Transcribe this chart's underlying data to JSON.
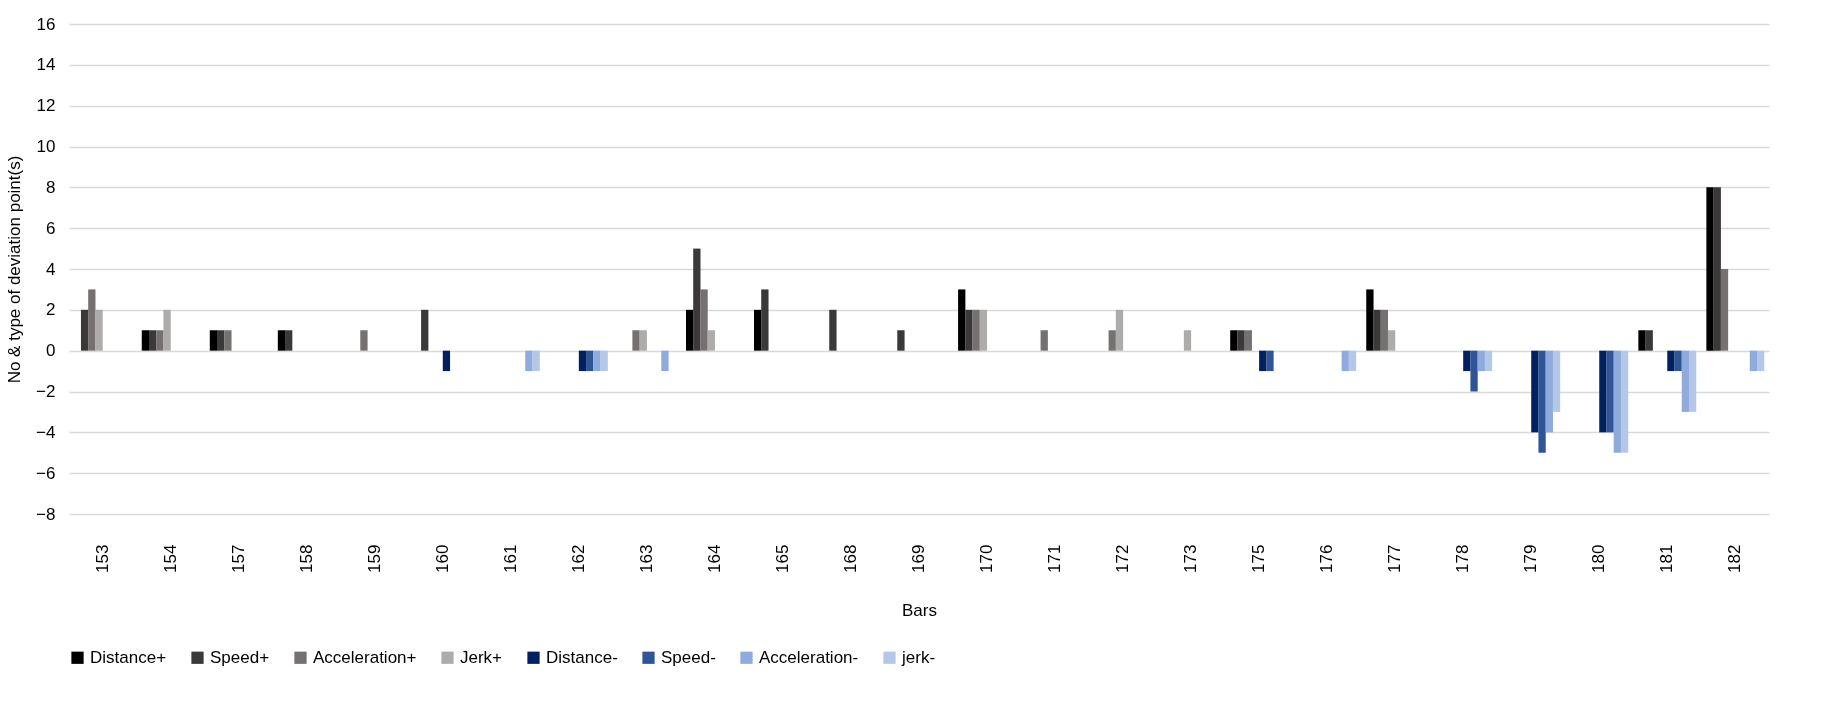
{
  "chart_data": {
    "type": "bar",
    "xlabel": "Bars",
    "ylabel": "No & type of deviation point(s)",
    "categories": [
      "153",
      "154",
      "157",
      "158",
      "159",
      "160",
      "161",
      "162",
      "163",
      "164",
      "165",
      "168",
      "169",
      "170",
      "171",
      "172",
      "173",
      "175",
      "176",
      "177",
      "178",
      "179",
      "180",
      "181",
      "182"
    ],
    "series": [
      {
        "name": "Distance+",
        "color": "#000000",
        "values": [
          0,
          1,
          1,
          1,
          0,
          0,
          0,
          0,
          0,
          2,
          2,
          0,
          0,
          3,
          0,
          0,
          0,
          1,
          0,
          3,
          0,
          0,
          0,
          1,
          8
        ]
      },
      {
        "name": "Speed+",
        "color": "#3a3838",
        "values": [
          2,
          1,
          1,
          1,
          0,
          2,
          0,
          0,
          0,
          5,
          3,
          2,
          1,
          2,
          0,
          0,
          0,
          1,
          0,
          2,
          0,
          0,
          0,
          1,
          8
        ]
      },
      {
        "name": "Acceleration+",
        "color": "#767171",
        "values": [
          3,
          1,
          1,
          0,
          1,
          0,
          0,
          0,
          1,
          3,
          0,
          0,
          0,
          2,
          1,
          1,
          0,
          1,
          0,
          2,
          0,
          0,
          0,
          0,
          4
        ]
      },
      {
        "name": "Jerk+",
        "color": "#aeabab",
        "values": [
          2,
          2,
          0,
          0,
          0,
          0,
          0,
          0,
          1,
          1,
          0,
          0,
          0,
          2,
          0,
          2,
          1,
          0,
          0,
          1,
          0,
          0,
          0,
          0,
          0
        ]
      },
      {
        "name": "Distance-",
        "color": "#002060",
        "values": [
          0,
          0,
          0,
          0,
          0,
          -1,
          0,
          -1,
          0,
          0,
          0,
          0,
          0,
          0,
          0,
          0,
          0,
          -1,
          0,
          0,
          -1,
          -4,
          -4,
          -1,
          0
        ]
      },
      {
        "name": "Speed-",
        "color": "#2f5597",
        "values": [
          0,
          0,
          0,
          0,
          0,
          0,
          0,
          -1,
          0,
          0,
          0,
          0,
          0,
          0,
          0,
          0,
          0,
          -1,
          0,
          0,
          -2,
          -5,
          -4,
          -1,
          0
        ]
      },
      {
        "name": "Acceleration-",
        "color": "#8faadc",
        "values": [
          0,
          0,
          0,
          0,
          0,
          0,
          -1,
          -1,
          -1,
          0,
          0,
          0,
          0,
          0,
          0,
          0,
          0,
          0,
          -1,
          0,
          -1,
          -4,
          -5,
          -3,
          -1
        ]
      },
      {
        "name": "jerk-",
        "color": "#b4c7e7",
        "values": [
          0,
          0,
          0,
          0,
          0,
          0,
          -1,
          -1,
          0,
          0,
          0,
          0,
          0,
          0,
          0,
          0,
          0,
          0,
          -1,
          0,
          -1,
          -3,
          -5,
          -3,
          -1
        ]
      }
    ],
    "ylim": [
      -8,
      16
    ],
    "yticks": [
      -8,
      -6,
      -4,
      -2,
      0,
      2,
      4,
      6,
      8,
      10,
      12,
      14,
      16
    ],
    "grid": "y",
    "legend": "bottom"
  }
}
